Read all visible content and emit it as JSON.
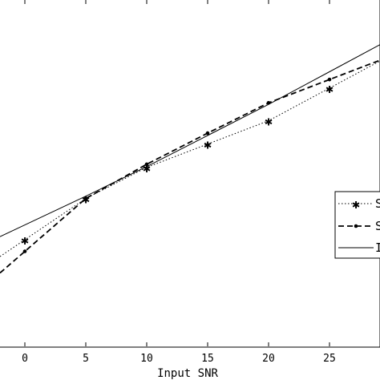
{
  "chart_data": {
    "type": "line",
    "xlabel": "Input SNR",
    "ylabel": "",
    "xlim": [
      -2,
      29
    ],
    "x": [
      0,
      5,
      10,
      15,
      20,
      25
    ],
    "x_ticks": [
      0,
      5,
      10,
      15,
      20,
      25
    ],
    "x_tick_labels": [
      "0",
      "5",
      "10",
      "15",
      "20",
      "25"
    ],
    "series": [
      {
        "name": "S",
        "style": "dotted",
        "marker": "asterisk",
        "x": [
          0,
          5,
          10,
          15,
          20,
          25
        ],
        "y": [
          -2.0,
          3.3,
          7.3,
          10.3,
          13.3,
          17.5
        ]
      },
      {
        "name": "S",
        "style": "dashed",
        "marker": "dot",
        "x": [
          0,
          5,
          10,
          15,
          20,
          25
        ],
        "y": [
          -3.5,
          3.3,
          7.7,
          11.7,
          15.6,
          18.6
        ]
      },
      {
        "name": "I",
        "style": "solid",
        "marker": "none",
        "x": [
          0,
          5,
          10,
          15,
          20,
          25
        ],
        "y": [
          -0.1,
          3.6,
          7.4,
          11.4,
          15.4,
          19.6
        ]
      }
    ],
    "legend_position": "right",
    "grid": false,
    "colors": {
      "line": "#000000",
      "background": "#ffffff"
    }
  }
}
